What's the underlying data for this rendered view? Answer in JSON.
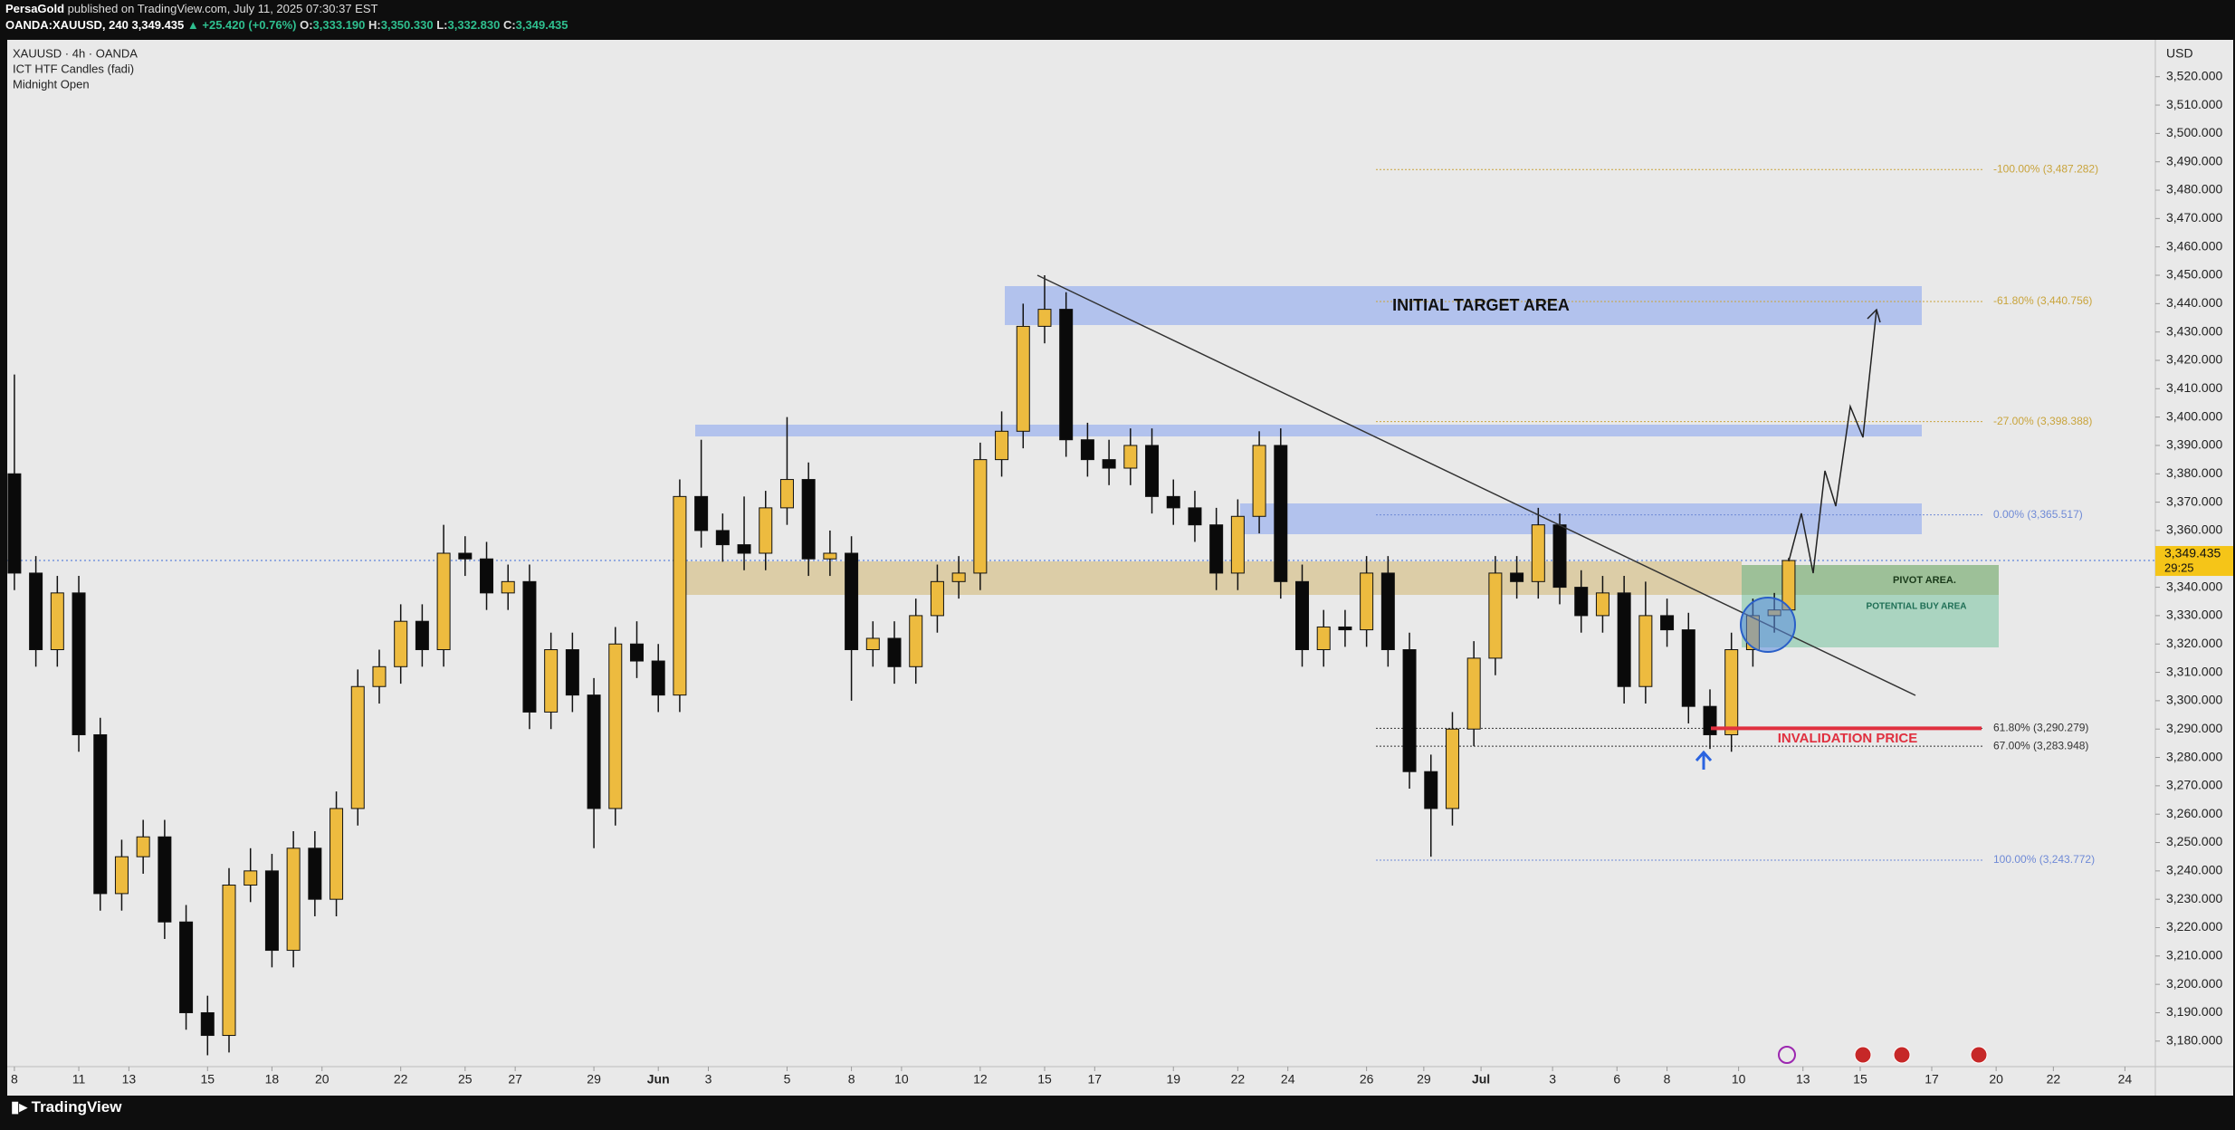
{
  "header": {
    "author": "PersaGold",
    "published": "published on TradingView.com, July 11, 2025 07:30:37 EST",
    "symbol": "OANDA:XAUUSD, 240",
    "price": "3,349.435",
    "change": "▲ +25.420 (+0.76%)",
    "ohlc": [
      {
        "key": "O:",
        "value": "3,333.190"
      },
      {
        "key": "H:",
        "value": "3,350.330"
      },
      {
        "key": "L:",
        "value": "3,332.830"
      },
      {
        "key": "C:",
        "value": "3,349.435"
      }
    ]
  },
  "chart_data": {
    "type": "candlestick",
    "title": "XAUUSD · 4h · OANDA",
    "indicators": [
      "ICT HTF Candles (fadi)",
      "Midnight Open"
    ],
    "y_axis_unit": "USD",
    "up_color": "#edbb3f",
    "down_color": "#0a0a0a",
    "grid": false,
    "x": [
      1,
      4,
      7,
      10,
      13,
      16,
      19,
      22,
      25,
      28,
      31,
      34,
      37,
      40,
      43,
      46,
      49,
      52,
      55,
      58,
      61,
      64,
      67,
      70,
      73,
      76,
      79,
      82,
      85,
      88,
      91,
      94,
      97,
      100,
      103,
      106,
      109,
      112,
      115,
      118,
      121,
      124,
      127,
      130,
      133,
      136,
      139,
      142,
      145,
      148,
      151,
      154,
      157,
      160,
      163,
      166,
      169,
      172,
      175,
      178,
      181,
      184,
      187,
      190,
      193,
      196,
      199,
      202,
      205,
      208,
      211,
      214,
      217,
      220,
      223,
      226,
      229,
      232,
      235,
      238,
      241,
      244,
      247,
      249
    ],
    "open": [
      3380,
      3345,
      3318,
      3338,
      3288,
      3232,
      3245,
      3252,
      3222,
      3190,
      3182,
      3235,
      3240,
      3212,
      3248,
      3230,
      3262,
      3305,
      3312,
      3328,
      3318,
      3352,
      3350,
      3338,
      3342,
      3296,
      3318,
      3302,
      3262,
      3320,
      3314,
      3302,
      3372,
      3360,
      3355,
      3352,
      3368,
      3378,
      3350,
      3352,
      3318,
      3322,
      3312,
      3330,
      3342,
      3345,
      3385,
      3395,
      3432,
      3438,
      3392,
      3385,
      3382,
      3390,
      3372,
      3368,
      3362,
      3345,
      3365,
      3390,
      3342,
      3318,
      3326,
      3325,
      3345,
      3318,
      3275,
      3262,
      3290,
      3315,
      3345,
      3342,
      3362,
      3340,
      3330,
      3338,
      3305,
      3330,
      3325,
      3298,
      3288,
      3318,
      3330,
      3332
    ],
    "high": [
      3415,
      3351,
      3344,
      3344,
      3294,
      3251,
      3258,
      3258,
      3228,
      3196,
      3241,
      3248,
      3246,
      3254,
      3254,
      3268,
      3311,
      3318,
      3334,
      3334,
      3362,
      3358,
      3356,
      3348,
      3348,
      3324,
      3324,
      3308,
      3326,
      3328,
      3320,
      3378,
      3392,
      3366,
      3372,
      3374,
      3400,
      3384,
      3360,
      3358,
      3328,
      3328,
      3336,
      3348,
      3351,
      3391,
      3402,
      3440,
      3450,
      3444,
      3398,
      3392,
      3396,
      3396,
      3378,
      3374,
      3368,
      3371,
      3395,
      3396,
      3348,
      3332,
      3332,
      3351,
      3351,
      3324,
      3281,
      3296,
      3321,
      3351,
      3351,
      3368,
      3366,
      3346,
      3344,
      3344,
      3342,
      3336,
      3331,
      3304,
      3324,
      3336,
      3338,
      3350.33
    ],
    "low": [
      3339,
      3312,
      3312,
      3282,
      3226,
      3226,
      3239,
      3216,
      3184,
      3175,
      3176,
      3229,
      3206,
      3206,
      3224,
      3224,
      3256,
      3299,
      3306,
      3312,
      3312,
      3344,
      3332,
      3332,
      3290,
      3290,
      3296,
      3248,
      3256,
      3308,
      3296,
      3296,
      3354,
      3349,
      3346,
      3346,
      3362,
      3344,
      3344,
      3300,
      3312,
      3306,
      3306,
      3324,
      3336,
      3339,
      3379,
      3389,
      3426,
      3386,
      3379,
      3376,
      3376,
      3366,
      3362,
      3356,
      3339,
      3339,
      3359,
      3336,
      3312,
      3312,
      3319,
      3319,
      3312,
      3269,
      3245,
      3256,
      3284,
      3309,
      3336,
      3336,
      3334,
      3324,
      3324,
      3299,
      3299,
      3319,
      3292,
      3283,
      3282,
      3312,
      3324,
      3332.83
    ],
    "close": [
      3345,
      3318,
      3338,
      3288,
      3232,
      3245,
      3252,
      3222,
      3190,
      3182,
      3235,
      3240,
      3212,
      3248,
      3230,
      3262,
      3305,
      3312,
      3328,
      3318,
      3352,
      3350,
      3338,
      3342,
      3296,
      3318,
      3302,
      3262,
      3320,
      3314,
      3302,
      3372,
      3360,
      3355,
      3352,
      3368,
      3378,
      3350,
      3352,
      3318,
      3322,
      3312,
      3330,
      3342,
      3345,
      3385,
      3395,
      3432,
      3438,
      3392,
      3385,
      3382,
      3390,
      3372,
      3368,
      3362,
      3345,
      3365,
      3390,
      3342,
      3318,
      3326,
      3325,
      3345,
      3318,
      3275,
      3262,
      3290,
      3315,
      3345,
      3342,
      3362,
      3340,
      3330,
      3338,
      3305,
      3330,
      3325,
      3298,
      3288,
      3318,
      3330,
      3332,
      3349.435
    ],
    "xlim": [
      0,
      300
    ],
    "ylim": [
      3171,
      3533
    ],
    "xticks": [
      {
        "value": 1,
        "label": "8"
      },
      {
        "value": 10,
        "label": "11"
      },
      {
        "value": 17,
        "label": "13"
      },
      {
        "value": 28,
        "label": "15"
      },
      {
        "value": 37,
        "label": "18"
      },
      {
        "value": 44,
        "label": "20"
      },
      {
        "value": 55,
        "label": "22"
      },
      {
        "value": 64,
        "label": "25"
      },
      {
        "value": 71,
        "label": "27"
      },
      {
        "value": 82,
        "label": "29"
      },
      {
        "value": 91,
        "label": "Jun"
      },
      {
        "value": 98,
        "label": "3"
      },
      {
        "value": 109,
        "label": "5"
      },
      {
        "value": 118,
        "label": "8"
      },
      {
        "value": 125,
        "label": "10"
      },
      {
        "value": 136,
        "label": "12"
      },
      {
        "value": 145,
        "label": "15"
      },
      {
        "value": 152,
        "label": "17"
      },
      {
        "value": 163,
        "label": "19"
      },
      {
        "value": 172,
        "label": "22"
      },
      {
        "value": 179,
        "label": "24"
      },
      {
        "value": 190,
        "label": "26"
      },
      {
        "value": 198,
        "label": "29"
      },
      {
        "value": 206,
        "label": "Jul"
      },
      {
        "value": 216,
        "label": "3"
      },
      {
        "value": 225,
        "label": "6"
      },
      {
        "value": 232,
        "label": "8"
      },
      {
        "value": 242,
        "label": "10"
      },
      {
        "value": 251,
        "label": "13"
      },
      {
        "value": 259,
        "label": "15"
      },
      {
        "value": 269,
        "label": "17"
      },
      {
        "value": 278,
        "label": "20"
      },
      {
        "value": 286,
        "label": "22"
      },
      {
        "value": 296,
        "label": "24"
      }
    ],
    "yticks": [
      {
        "value": 3520,
        "label": "3,520.000"
      },
      {
        "value": 3510,
        "label": "3,510.000"
      },
      {
        "value": 3500,
        "label": "3,500.000"
      },
      {
        "value": 3490,
        "label": "3,490.000"
      },
      {
        "value": 3480,
        "label": "3,480.000"
      },
      {
        "value": 3470,
        "label": "3,470.000"
      },
      {
        "value": 3460,
        "label": "3,460.000"
      },
      {
        "value": 3450,
        "label": "3,450.000"
      },
      {
        "value": 3440,
        "label": "3,440.000"
      },
      {
        "value": 3430,
        "label": "3,430.000"
      },
      {
        "value": 3420,
        "label": "3,420.000"
      },
      {
        "value": 3410,
        "label": "3,410.000"
      },
      {
        "value": 3400,
        "label": "3,400.000"
      },
      {
        "value": 3390,
        "label": "3,390.000"
      },
      {
        "value": 3380,
        "label": "3,380.000"
      },
      {
        "value": 3370,
        "label": "3,370.000"
      },
      {
        "value": 3360,
        "label": "3,360.000"
      },
      {
        "value": 3350,
        "label": "3,350.000"
      },
      {
        "value": 3340,
        "label": "3,340.000"
      },
      {
        "value": 3330,
        "label": "3,330.000"
      },
      {
        "value": 3320,
        "label": "3,320.000"
      },
      {
        "value": 3310,
        "label": "3,310.000"
      },
      {
        "value": 3300,
        "label": "3,300.000"
      },
      {
        "value": 3290,
        "label": "3,290.000"
      },
      {
        "value": 3280,
        "label": "3,280.000"
      },
      {
        "value": 3270,
        "label": "3,270.000"
      },
      {
        "value": 3260,
        "label": "3,260.000"
      },
      {
        "value": 3250,
        "label": "3,250.000"
      },
      {
        "value": 3240,
        "label": "3,240.000"
      },
      {
        "value": 3230,
        "label": "3,230.000"
      },
      {
        "value": 3220,
        "label": "3,220.000"
      },
      {
        "value": 3210,
        "label": "3,210.000"
      },
      {
        "value": 3200,
        "label": "3,200.000"
      },
      {
        "value": 3190,
        "label": "3,190.000"
      },
      {
        "value": 3180,
        "label": "3,180.000"
      }
    ],
    "last_price": {
      "value": 3349.435,
      "label": "3,349.435"
    },
    "countdown": "29:25",
    "fib_levels": [
      {
        "value": 3487.282,
        "label": "-100.00% (3,487.282)",
        "color": "#c9a43c"
      },
      {
        "value": 3440.756,
        "label": "-61.80% (3,440.756)",
        "color": "#c9a43c"
      },
      {
        "value": 3398.388,
        "label": "-27.00% (3,398.388)",
        "color": "#c9a43c"
      },
      {
        "value": 3365.517,
        "label": "0.00% (3,365.517)",
        "color": "#6f8ad6"
      },
      {
        "value": 3290.279,
        "label": "61.80% (3,290.279)",
        "color": "#333333"
      },
      {
        "value": 3283.948,
        "label": "67.00% (3,283.948)",
        "color": "#333333"
      },
      {
        "value": 3243.772,
        "label": "100.00% (3,243.772)",
        "color": "#6f8ad6"
      }
    ],
    "annotations": {
      "target": "INITIAL TARGET AREA",
      "pivot": "PIVOT AREA.",
      "buy": "POTENTIAL BUY AREA",
      "invalidation": "INVALIDATION PRICE"
    }
  },
  "footer": {
    "brand": "TradingView"
  }
}
